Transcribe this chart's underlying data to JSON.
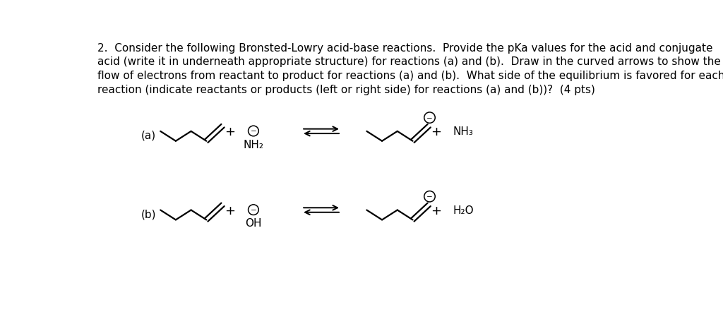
{
  "background_color": "#ffffff",
  "title_text": "2.  Consider the following Bronsted-Lowry acid-base reactions.  Provide the pKa values for the acid and conjugate\nacid (write it in underneath appropriate structure) for reactions (a) and (b).  Draw in the curved arrows to show the\nflow of electrons from reactant to product for reactions (a) and (b).  What side of the equilibrium is favored for each\nreaction (indicate reactants or products (left or right side) for reactions (a) and (b))?  (4 pts)",
  "title_fontsize": 11.0,
  "label_a": "(a)",
  "label_b": "(b)",
  "reaction_a_base": "NH",
  "reaction_a_base_sub": "2",
  "reaction_a_product": "NH",
  "reaction_a_product_sub": "3",
  "reaction_b_base": "OH",
  "reaction_b_product": "H",
  "reaction_b_product_sub2": "2",
  "reaction_b_product_end": "O",
  "figsize": [
    10.24,
    4.6
  ],
  "dpi": 100,
  "lw": 1.6
}
